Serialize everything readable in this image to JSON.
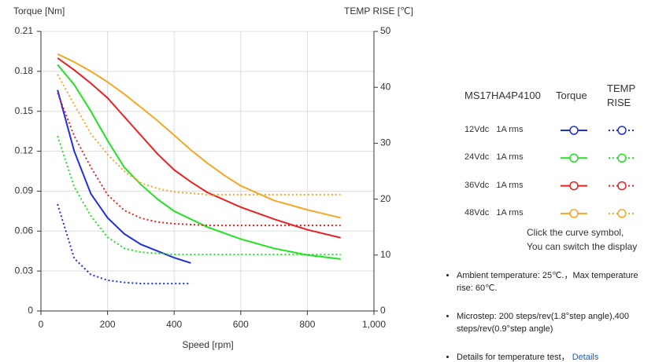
{
  "chart_data": {
    "type": "line",
    "y_label": "Torque  [Nm]",
    "y2_label": "TEMP RISE [℃]",
    "x_label": "Speed [rpm]",
    "xlim": [
      0,
      1000
    ],
    "xticks": [
      0,
      200,
      400,
      600,
      800,
      {
        "value": 1000,
        "label": "1,000"
      }
    ],
    "ylim": [
      0,
      0.21
    ],
    "yticks": [
      0,
      0.03,
      0.06,
      0.09,
      0.12,
      0.15,
      0.18,
      0.21
    ],
    "y2lim": [
      0,
      50
    ],
    "y2ticks": [
      0,
      10,
      20,
      30,
      40,
      50
    ],
    "grid": true,
    "series": [
      {
        "name": "12Vdc   1A rms",
        "color": "#1f2fe0",
        "x": [
          50,
          100,
          150,
          200,
          250,
          300,
          350,
          400,
          450
        ],
        "values": [
          0.166,
          0.12,
          0.088,
          0.07,
          0.058,
          0.05,
          0.045,
          0.04,
          0.036
        ]
      },
      {
        "color": "#1f2fe0",
        "axis": "y2",
        "dotted": true,
        "x": [
          50,
          100,
          150,
          200,
          250,
          300,
          350,
          400,
          450
        ],
        "values": [
          19.1,
          9.4,
          6.5,
          5.5,
          5.1,
          4.9,
          4.9,
          4.9,
          4.9
        ]
      },
      {
        "name": "24Vdc   1A rms",
        "color": "#22e022",
        "x": [
          50,
          100,
          150,
          200,
          250,
          300,
          350,
          400,
          500,
          600,
          700,
          800,
          900
        ],
        "values": [
          0.185,
          0.17,
          0.15,
          0.128,
          0.108,
          0.095,
          0.084,
          0.075,
          0.063,
          0.054,
          0.047,
          0.042,
          0.039
        ]
      },
      {
        "color": "#22e022",
        "axis": "y2",
        "dotted": true,
        "x": [
          50,
          100,
          150,
          200,
          250,
          300,
          400,
          500,
          600,
          700,
          800,
          900
        ],
        "values": [
          31.3,
          22.2,
          17,
          13.2,
          11.2,
          10.5,
          10.1,
          10.1,
          10.1,
          10.1,
          10.1,
          10.1
        ]
      },
      {
        "name": "36Vdc   1A rms",
        "color": "#e82020",
        "x": [
          50,
          100,
          150,
          200,
          250,
          300,
          350,
          400,
          450,
          500,
          600,
          700,
          800,
          900
        ],
        "values": [
          0.19,
          0.181,
          0.171,
          0.16,
          0.146,
          0.132,
          0.118,
          0.106,
          0.097,
          0.089,
          0.078,
          0.069,
          0.061,
          0.055
        ]
      },
      {
        "color": "#e82020",
        "axis": "y2",
        "dotted": true,
        "x": [
          50,
          100,
          150,
          200,
          250,
          300,
          350,
          400,
          500,
          600,
          700,
          800,
          900
        ],
        "values": [
          39,
          31.3,
          25.7,
          20.8,
          18,
          16.6,
          15.9,
          15.6,
          15.3,
          15.3,
          15.3,
          15.3,
          15.3
        ]
      },
      {
        "name": "48Vdc   1A rms",
        "color": "#f5a623",
        "x": [
          50,
          100,
          150,
          200,
          250,
          300,
          350,
          400,
          450,
          500,
          550,
          600,
          700,
          800,
          900
        ],
        "values": [
          0.193,
          0.187,
          0.18,
          0.172,
          0.163,
          0.153,
          0.143,
          0.132,
          0.121,
          0.111,
          0.102,
          0.094,
          0.083,
          0.076,
          0.07
        ]
      },
      {
        "color": "#f5a623",
        "axis": "y2",
        "dotted": true,
        "x": [
          50,
          100,
          150,
          200,
          250,
          300,
          350,
          400,
          500,
          600,
          700,
          800,
          900
        ],
        "values": [
          42.3,
          36.9,
          31.7,
          28,
          25,
          22.9,
          21.9,
          21.3,
          20.8,
          20.8,
          20.8,
          20.8,
          20.8
        ]
      }
    ],
    "legend": {
      "title": "MS17HA4P4100",
      "columns": [
        "Torque",
        "TEMP RISE"
      ]
    },
    "note": [
      "Click the curve symbol,",
      "You can switch the display"
    ]
  },
  "notes": [
    "Ambient temperature: 25℃.，Max temperature rise: 60℃.",
    "Microstep: 200 steps/rev(1.8°step angle),400 steps/rev(0.9°step angle)",
    {
      "text": "Details for temperature test，",
      "link": "Details"
    }
  ]
}
